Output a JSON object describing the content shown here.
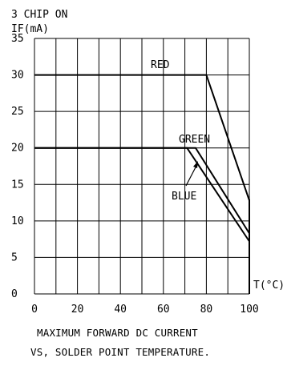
{
  "chart_data": {
    "type": "line",
    "title": "3 CHIP ON",
    "ylabel": "IF(mA)",
    "xlabel": "T(°C)",
    "xlim": [
      0,
      100
    ],
    "ylim": [
      0,
      35
    ],
    "x_ticks": [
      0,
      20,
      40,
      60,
      80,
      100
    ],
    "y_ticks": [
      0,
      5,
      10,
      15,
      20,
      25,
      30,
      35
    ],
    "grid": true,
    "series": [
      {
        "name": "RED",
        "color": "#000000",
        "points": [
          [
            0,
            30
          ],
          [
            80,
            30
          ],
          [
            100,
            12.8
          ]
        ]
      },
      {
        "name": "GREEN",
        "color": "#000000",
        "points": [
          [
            0,
            20
          ],
          [
            75,
            20
          ],
          [
            100,
            8.3
          ]
        ]
      },
      {
        "name": "BLUE",
        "color": "#000000",
        "points": [
          [
            0,
            20
          ],
          [
            71,
            20
          ],
          [
            100,
            7.2
          ]
        ]
      }
    ],
    "caption": [
      "MAXIMUM FORWARD DC CURRENT",
      "VS, SOLDER POINT TEMPERATURE."
    ]
  }
}
